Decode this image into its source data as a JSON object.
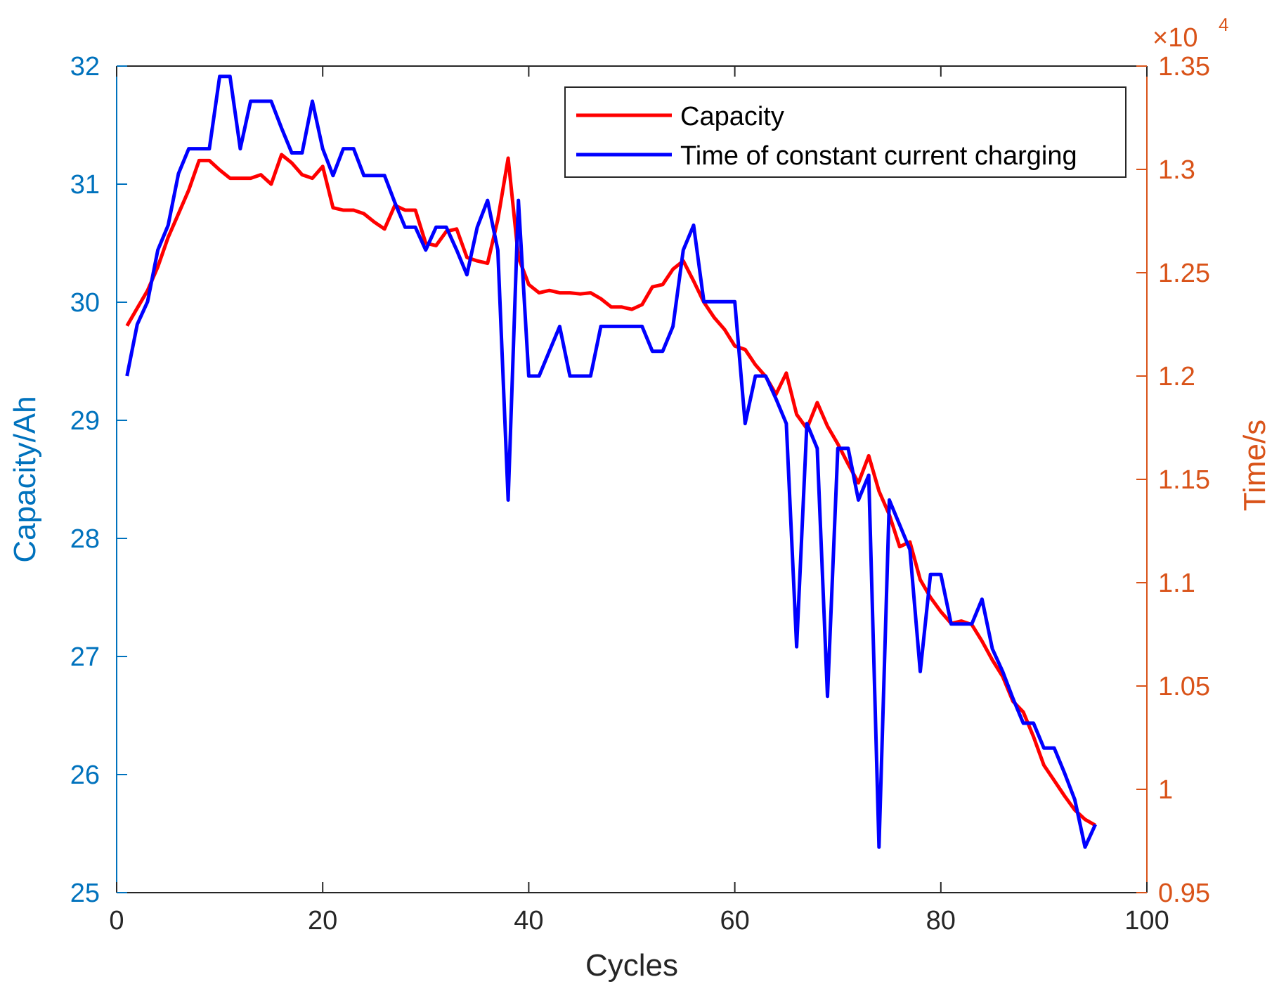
{
  "chart_data": {
    "type": "line",
    "dual_axis": true,
    "xlabel": "Cycles",
    "ylabel_left": "Capacity/Ah",
    "ylabel_right": "Time/s",
    "right_axis_exponent_base": "×10",
    "right_axis_exponent_power": "4",
    "xlim": [
      0,
      100
    ],
    "ylim_left": [
      25,
      32
    ],
    "ylim_right": [
      0.95,
      1.35
    ],
    "x_ticks": [
      "0",
      "20",
      "40",
      "60",
      "80",
      "100"
    ],
    "y_left_ticks": [
      "25",
      "26",
      "27",
      "28",
      "29",
      "30",
      "31",
      "32"
    ],
    "y_right_ticks": [
      "0.95",
      "1",
      "1.05",
      "1.1",
      "1.15",
      "1.2",
      "1.25",
      "1.3",
      "1.35"
    ],
    "legend_position": "top-right",
    "colors": {
      "left_axis": "#0072BD",
      "right_axis": "#D95319",
      "capacity_line": "#FF0000",
      "time_line": "#0000FF",
      "axis_black": "#262626"
    },
    "series": [
      {
        "name": "Capacity",
        "axis": "left",
        "color": "#FF0000",
        "x": [
          1,
          2,
          3,
          4,
          5,
          6,
          7,
          8,
          9,
          10,
          11,
          12,
          13,
          14,
          15,
          16,
          17,
          18,
          19,
          20,
          21,
          22,
          23,
          24,
          25,
          26,
          27,
          28,
          29,
          30,
          31,
          32,
          33,
          34,
          35,
          36,
          37,
          38,
          39,
          40,
          41,
          42,
          43,
          44,
          45,
          46,
          47,
          48,
          49,
          50,
          51,
          52,
          53,
          54,
          55,
          56,
          57,
          58,
          59,
          60,
          61,
          62,
          63,
          64,
          65,
          66,
          67,
          68,
          69,
          70,
          71,
          72,
          73,
          74,
          75,
          76,
          77,
          78,
          79,
          80,
          81,
          82,
          83,
          84,
          85,
          86,
          87,
          88,
          89,
          90,
          91,
          92,
          93,
          94,
          95
        ],
        "values": [
          29.8,
          29.95,
          30.1,
          30.3,
          30.55,
          30.75,
          30.95,
          31.2,
          31.2,
          31.12,
          31.05,
          31.05,
          31.05,
          31.08,
          31.0,
          31.25,
          31.18,
          31.08,
          31.05,
          31.15,
          30.8,
          30.78,
          30.78,
          30.75,
          30.68,
          30.62,
          30.82,
          30.78,
          30.78,
          30.5,
          30.48,
          30.6,
          30.62,
          30.38,
          30.35,
          30.33,
          30.7,
          31.22,
          30.38,
          30.15,
          30.08,
          30.1,
          30.08,
          30.08,
          30.07,
          30.08,
          30.03,
          29.96,
          29.96,
          29.94,
          29.98,
          30.13,
          30.15,
          30.28,
          30.35,
          30.18,
          30.0,
          29.87,
          29.77,
          29.63,
          29.6,
          29.47,
          29.37,
          29.22,
          29.4,
          29.05,
          28.93,
          29.15,
          28.95,
          28.8,
          28.63,
          28.47,
          28.7,
          28.4,
          28.2,
          27.93,
          27.97,
          27.65,
          27.5,
          27.38,
          27.28,
          27.3,
          27.27,
          27.13,
          26.97,
          26.83,
          26.62,
          26.53,
          26.32,
          26.08,
          25.95,
          25.82,
          25.7,
          25.62,
          25.57
        ]
      },
      {
        "name": "Time of constant current charging",
        "axis": "right",
        "color": "#0000FF",
        "x": [
          1,
          2,
          3,
          4,
          5,
          6,
          7,
          8,
          9,
          10,
          11,
          12,
          13,
          14,
          15,
          16,
          17,
          18,
          19,
          20,
          21,
          22,
          23,
          24,
          25,
          26,
          27,
          28,
          29,
          30,
          31,
          32,
          33,
          34,
          35,
          36,
          37,
          38,
          39,
          40,
          41,
          42,
          43,
          44,
          45,
          46,
          47,
          48,
          49,
          50,
          51,
          52,
          53,
          54,
          55,
          56,
          57,
          58,
          59,
          60,
          61,
          62,
          63,
          64,
          65,
          66,
          67,
          68,
          69,
          70,
          71,
          72,
          73,
          74,
          75,
          76,
          77,
          78,
          79,
          80,
          81,
          82,
          83,
          84,
          85,
          86,
          87,
          88,
          89,
          90,
          91,
          92,
          93,
          94,
          95
        ],
        "values": [
          1.2,
          1.225,
          1.236,
          1.261,
          1.273,
          1.298,
          1.31,
          1.31,
          1.31,
          1.345,
          1.345,
          1.31,
          1.333,
          1.333,
          1.333,
          1.32,
          1.308,
          1.308,
          1.333,
          1.31,
          1.297,
          1.31,
          1.31,
          1.297,
          1.297,
          1.297,
          1.284,
          1.272,
          1.272,
          1.261,
          1.272,
          1.272,
          1.261,
          1.249,
          1.272,
          1.285,
          1.261,
          1.14,
          1.285,
          1.2,
          1.2,
          1.212,
          1.224,
          1.2,
          1.2,
          1.2,
          1.224,
          1.224,
          1.224,
          1.224,
          1.224,
          1.212,
          1.212,
          1.224,
          1.261,
          1.273,
          1.236,
          1.236,
          1.236,
          1.236,
          1.177,
          1.2,
          1.2,
          1.189,
          1.177,
          1.069,
          1.177,
          1.165,
          1.045,
          1.165,
          1.165,
          1.14,
          1.152,
          0.972,
          1.14,
          1.128,
          1.116,
          1.057,
          1.104,
          1.104,
          1.08,
          1.08,
          1.08,
          1.092,
          1.068,
          1.057,
          1.044,
          1.032,
          1.032,
          1.02,
          1.02,
          1.008,
          0.995,
          0.972,
          0.983
        ]
      }
    ]
  }
}
